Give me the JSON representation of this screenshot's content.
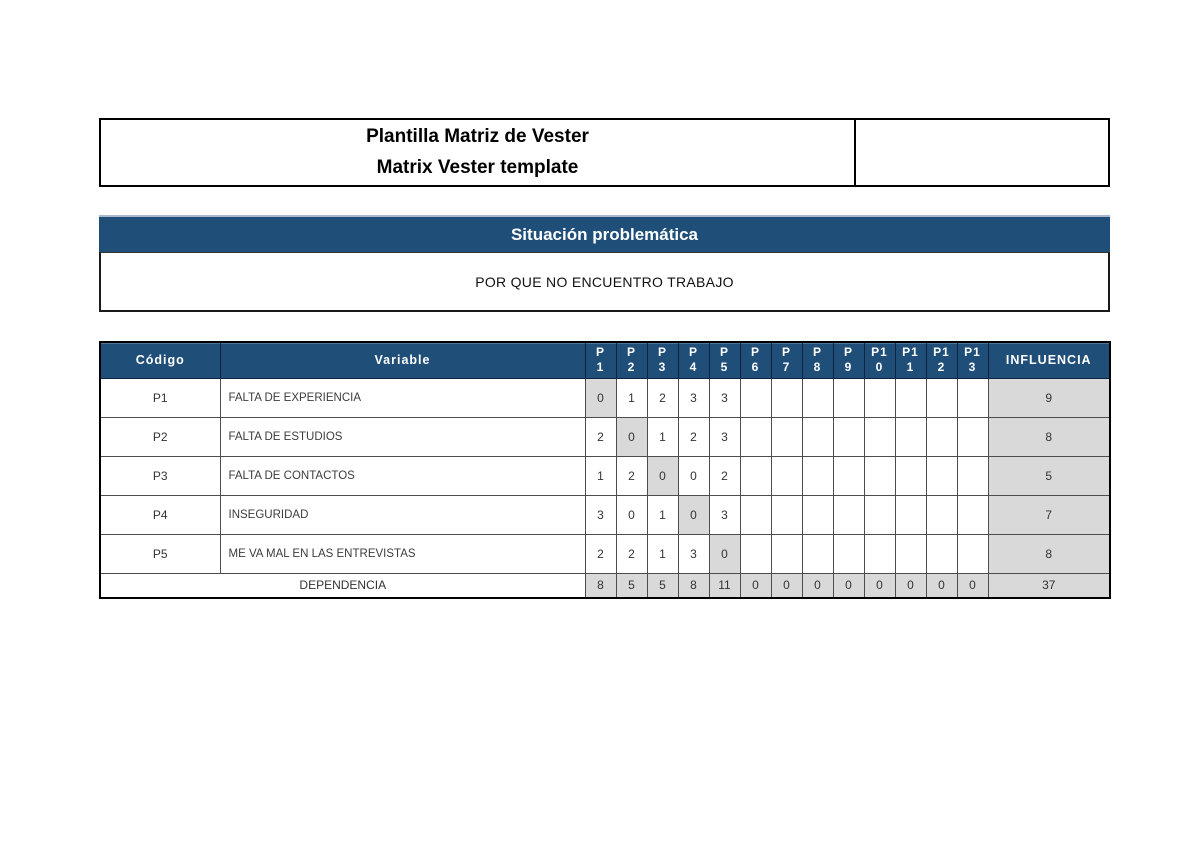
{
  "title_box": {
    "line1": "Plantilla Matriz de Vester",
    "line2": "Matrix Vester template"
  },
  "situation": {
    "header": "Situación problemática",
    "value": "POR QUE NO ENCUENTRO TRABAJO"
  },
  "matrix": {
    "headers": {
      "codigo": "Código",
      "variable": "Variable",
      "p_columns": [
        "P\n1",
        "P\n2",
        "P\n3",
        "P\n4",
        "P\n5",
        "P\n6",
        "P\n7",
        "P\n8",
        "P\n9",
        "P1\n0",
        "P1\n1",
        "P1\n2",
        "P1\n3"
      ],
      "influencia": "INFLUENCIA"
    },
    "rows": [
      {
        "codigo": "P1",
        "variable": "FALTA DE EXPERIENCIA",
        "values": [
          "0",
          "1",
          "2",
          "3",
          "3",
          "",
          "",
          "",
          "",
          "",
          "",
          "",
          ""
        ],
        "influencia": "9"
      },
      {
        "codigo": "P2",
        "variable": "FALTA DE ESTUDIOS",
        "values": [
          "2",
          "0",
          "1",
          "2",
          "3",
          "",
          "",
          "",
          "",
          "",
          "",
          "",
          ""
        ],
        "influencia": "8"
      },
      {
        "codigo": "P3",
        "variable": "FALTA DE CONTACTOS",
        "values": [
          "1",
          "2",
          "0",
          "0",
          "2",
          "",
          "",
          "",
          "",
          "",
          "",
          "",
          ""
        ],
        "influencia": "5"
      },
      {
        "codigo": "P4",
        "variable": "INSEGURIDAD",
        "values": [
          "3",
          "0",
          "1",
          "0",
          "3",
          "",
          "",
          "",
          "",
          "",
          "",
          "",
          ""
        ],
        "influencia": "7"
      },
      {
        "codigo": "P5",
        "variable": "ME VA MAL EN LAS ENTREVISTAS",
        "values": [
          "2",
          "2",
          "1",
          "3",
          "0",
          "",
          "",
          "",
          "",
          "",
          "",
          "",
          ""
        ],
        "influencia": "8"
      }
    ],
    "dependencia": {
      "label": "DEPENDENCIA",
      "values": [
        "8",
        "5",
        "5",
        "8",
        "11",
        "0",
        "0",
        "0",
        "0",
        "0",
        "0",
        "0",
        "0"
      ],
      "total": "37"
    }
  },
  "colors": {
    "header_blue": "#1F4E79",
    "header_blue_light_edge": "#A9B9CF",
    "cell_gray": "#D9D9D9",
    "border_dark": "#000000"
  }
}
